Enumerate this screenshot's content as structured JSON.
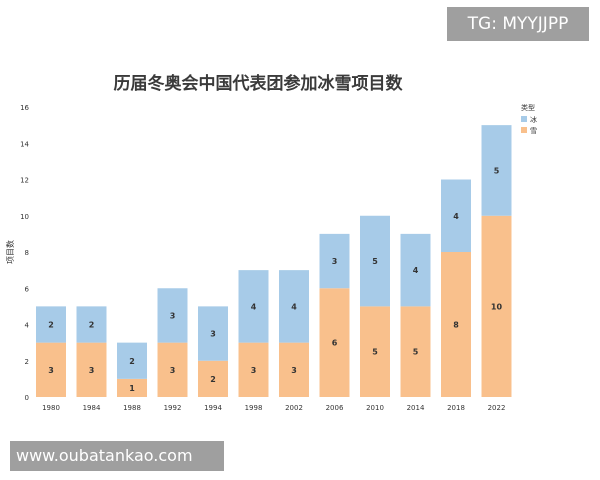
{
  "watermark": {
    "top": "TG: MYYJJPP",
    "bottom": "www.oubatankao.com"
  },
  "chart_data": {
    "type": "bar",
    "stacked": true,
    "title": "历届冬奥会中国代表团参加冰雪项目数",
    "xlabel": "",
    "ylabel": "项目数",
    "ylim": [
      0,
      16
    ],
    "yticks": [
      0,
      2,
      4,
      6,
      8,
      10,
      12,
      14,
      16
    ],
    "grid": false,
    "legend_title": "类型",
    "legend_position": "top-right",
    "categories": [
      "1980",
      "1984",
      "1988",
      "1992",
      "1994",
      "1998",
      "2002",
      "2006",
      "2010",
      "2014",
      "2018",
      "2022"
    ],
    "series": [
      {
        "name": "雪",
        "color": "#f9c08c",
        "values": [
          3,
          3,
          1,
          3,
          2,
          3,
          3,
          6,
          5,
          5,
          8,
          10
        ]
      },
      {
        "name": "冰",
        "color": "#a7cbe8",
        "values": [
          2,
          2,
          2,
          3,
          3,
          4,
          4,
          3,
          5,
          4,
          4,
          5
        ]
      }
    ],
    "legend_order": [
      "冰",
      "雪"
    ]
  }
}
